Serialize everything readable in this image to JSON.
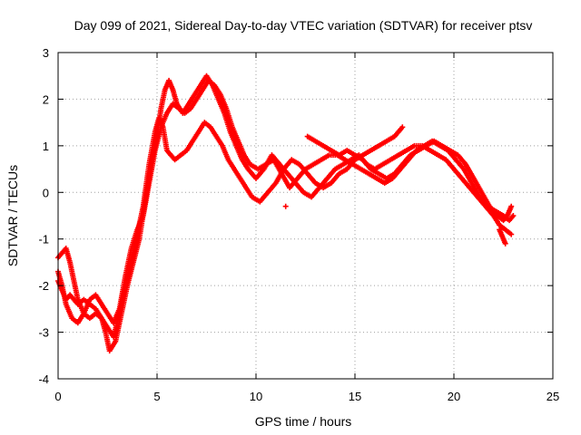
{
  "chart_data": {
    "type": "scatter",
    "title": "Day 099 of 2021, Sidereal Day-to-day VTEC variation (SDTVAR) for receiver ptsv",
    "xlabel": "GPS time / hours",
    "ylabel": "SDTVAR / TECUs",
    "xlim": [
      0,
      25
    ],
    "ylim": [
      -4,
      3
    ],
    "xticks": [
      0,
      5,
      10,
      15,
      20,
      25
    ],
    "yticks": [
      -4,
      -3,
      -2,
      -1,
      0,
      1,
      2,
      3
    ],
    "grid": true,
    "marker": "+",
    "color": "#ff0000",
    "series": [
      {
        "name": "track-1",
        "x": [
          0.0,
          0.2,
          0.4,
          0.6,
          0.8,
          1.0,
          1.3,
          1.6,
          1.9,
          2.2,
          2.5,
          2.8,
          3.1,
          3.4,
          3.7,
          4.0,
          4.3,
          4.6,
          4.9,
          5.1,
          5.3,
          5.5,
          5.7,
          5.9,
          6.2,
          6.5,
          6.8,
          7.1,
          7.4,
          7.7,
          8.0,
          8.3,
          8.6,
          8.9,
          9.2,
          9.5,
          9.8,
          10.2,
          10.6,
          11.0,
          11.4,
          11.8,
          12.2,
          12.6,
          13.0,
          13.4,
          13.8,
          14.2,
          14.6,
          15.0,
          15.4,
          15.8,
          16.2,
          16.6,
          17.0,
          17.4
        ],
        "y": [
          -1.9,
          -2.1,
          -2.3,
          -2.2,
          -2.3,
          -2.4,
          -2.3,
          -2.4,
          -2.5,
          -2.7,
          -2.9,
          -3.1,
          -2.6,
          -2.0,
          -1.4,
          -0.9,
          -0.3,
          0.6,
          1.3,
          1.6,
          1.4,
          0.9,
          0.8,
          0.7,
          0.8,
          0.9,
          1.1,
          1.3,
          1.5,
          1.4,
          1.2,
          1.0,
          0.7,
          0.5,
          0.3,
          0.1,
          -0.1,
          -0.2,
          0.0,
          0.2,
          0.5,
          0.7,
          0.6,
          0.4,
          0.2,
          0.1,
          0.2,
          0.4,
          0.5,
          0.7,
          0.8,
          0.9,
          1.0,
          1.1,
          1.2,
          1.4
        ]
      },
      {
        "name": "track-2",
        "x": [
          0.0,
          0.2,
          0.4,
          0.6,
          0.8,
          1.0,
          1.3,
          1.6,
          1.9,
          2.2,
          2.4,
          2.6,
          2.9,
          3.2,
          3.5,
          3.8,
          4.1,
          4.4,
          4.7,
          5.0,
          5.2,
          5.4,
          5.6,
          5.8,
          6.0,
          6.3,
          6.6,
          6.9,
          7.2,
          7.5,
          7.8,
          8.1,
          8.4,
          8.7,
          9.0,
          9.3,
          9.6,
          10.0,
          10.4,
          10.8,
          11.2,
          11.6,
          12.0,
          12.4,
          12.8,
          13.2,
          13.6,
          14.0,
          14.4,
          14.8,
          15.2,
          15.6,
          16.0,
          16.4,
          16.8,
          17.2,
          17.6,
          18.0,
          18.4,
          18.8,
          19.2,
          19.6,
          20.0,
          20.4,
          20.8,
          21.2,
          21.6,
          22.0,
          22.3,
          22.6,
          22.9
        ],
        "y": [
          -1.4,
          -1.3,
          -1.2,
          -1.5,
          -1.9,
          -2.3,
          -2.6,
          -2.7,
          -2.6,
          -2.7,
          -3.0,
          -3.4,
          -3.2,
          -2.6,
          -2.0,
          -1.5,
          -1.0,
          -0.2,
          0.6,
          1.2,
          1.8,
          2.2,
          2.4,
          2.2,
          1.9,
          1.7,
          1.9,
          2.1,
          2.3,
          2.5,
          2.3,
          2.0,
          1.7,
          1.3,
          1.0,
          0.7,
          0.5,
          0.3,
          0.5,
          0.8,
          0.6,
          0.4,
          0.2,
          0.0,
          -0.1,
          0.1,
          0.3,
          0.5,
          0.6,
          0.7,
          0.8,
          0.6,
          0.5,
          0.6,
          0.7,
          0.8,
          0.9,
          1.0,
          1.0,
          0.9,
          0.8,
          0.7,
          0.5,
          0.3,
          0.1,
          -0.1,
          -0.3,
          -0.5,
          -0.7,
          -0.8,
          -0.9
        ]
      },
      {
        "name": "track-3",
        "x": [
          0.0,
          0.2,
          0.4,
          0.7,
          1.0,
          1.3,
          1.6,
          1.9,
          2.2,
          2.5,
          2.8,
          3.1,
          3.4,
          3.7,
          4.0,
          4.3,
          4.6,
          4.9,
          5.2,
          5.5,
          5.8,
          6.1,
          6.4,
          6.7,
          7.0,
          7.3,
          7.6,
          7.9,
          8.2,
          8.5,
          8.8,
          9.1,
          9.4,
          9.7,
          10.1,
          10.5,
          10.9,
          11.3,
          11.7,
          12.1,
          12.5,
          12.9,
          13.3,
          13.7,
          14.1,
          14.5,
          14.9,
          15.3,
          15.7,
          16.1,
          16.5,
          16.9,
          17.3,
          17.7,
          18.1,
          18.5,
          18.9,
          19.3,
          19.7,
          20.1,
          20.5,
          20.9,
          21.3,
          21.7,
          22.1,
          22.5,
          22.8,
          23.0
        ],
        "y": [
          -1.7,
          -2.0,
          -2.4,
          -2.7,
          -2.8,
          -2.6,
          -2.3,
          -2.2,
          -2.4,
          -2.6,
          -2.8,
          -2.5,
          -1.8,
          -1.2,
          -0.8,
          -0.5,
          0.2,
          0.9,
          1.4,
          1.7,
          1.9,
          1.8,
          1.7,
          1.8,
          2.0,
          2.2,
          2.4,
          2.3,
          2.1,
          1.8,
          1.4,
          1.1,
          0.8,
          0.6,
          0.5,
          0.6,
          0.7,
          0.4,
          0.1,
          0.3,
          0.5,
          0.6,
          0.7,
          0.8,
          0.8,
          0.7,
          0.6,
          0.5,
          0.4,
          0.3,
          0.2,
          0.3,
          0.5,
          0.7,
          0.9,
          1.0,
          1.1,
          1.0,
          0.9,
          0.7,
          0.5,
          0.2,
          -0.1,
          -0.3,
          -0.4,
          -0.5,
          -0.6,
          -0.5
        ]
      },
      {
        "name": "track-4",
        "x": [
          12.6,
          13.0,
          13.4,
          13.8,
          14.2,
          14.6,
          15.0,
          15.4,
          15.8,
          16.2,
          16.6,
          17.0,
          17.4,
          17.8,
          18.2,
          18.6,
          19.0,
          19.4,
          19.8,
          20.2,
          20.6,
          21.0,
          21.4,
          21.8,
          22.2,
          22.5,
          22.7,
          22.9
        ],
        "y": [
          1.2,
          1.1,
          1.0,
          0.9,
          0.8,
          0.9,
          0.8,
          0.7,
          0.5,
          0.4,
          0.3,
          0.4,
          0.6,
          0.8,
          0.9,
          1.0,
          1.1,
          1.0,
          0.9,
          0.8,
          0.6,
          0.3,
          0.0,
          -0.3,
          -0.5,
          -0.6,
          -0.5,
          -0.3
        ]
      },
      {
        "name": "track-5",
        "x": [
          22.3,
          22.5,
          22.6
        ],
        "y": [
          -0.8,
          -1.0,
          -1.1
        ]
      },
      {
        "name": "track-6",
        "x": [
          11.5
        ],
        "y": [
          -0.3
        ]
      }
    ]
  }
}
